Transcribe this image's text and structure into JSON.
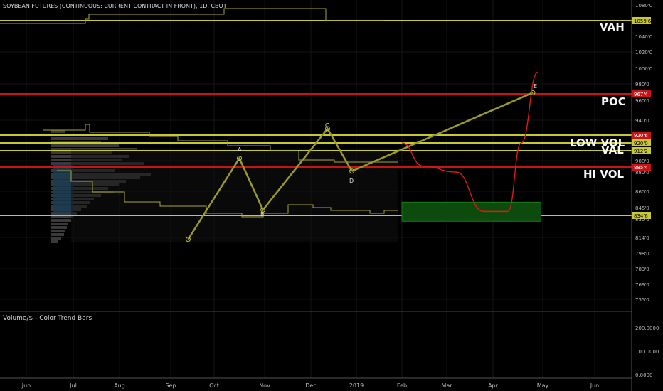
{
  "chart_title": "SOYBEAN FUTURES (CONTINUOUS: CURRENT CONTRACT IN FRONT), 1D, CBOT",
  "volume_title": "Volume/$ - Color Trend Bars",
  "labels": {
    "vah": "VAH",
    "poc": "POC",
    "low_vol": "LOW VOL",
    "val": "VAL",
    "hi_vol": "HI VOL"
  },
  "points": {
    "a": "A",
    "b": "B",
    "c": "C",
    "d": "D",
    "e": "E"
  },
  "colors": {
    "background": "#000000",
    "up": "#2ea02e",
    "down": "#c81e1e",
    "yellow_line": "#c8c832",
    "red_line": "#c81414",
    "pattern": "#9a9a2a",
    "forecast": "#e01818",
    "zone": "#0d5a0d"
  },
  "chart_data": {
    "type": "candlestick",
    "title": "SOYBEAN FUTURES (CONTINUOUS: CURRENT CONTRACT IN FRONT), 1D, CBOT",
    "x_ticks": [
      "Jun",
      "Jul",
      "Aug",
      "Sep",
      "Oct",
      "Nov",
      "Dec",
      "2019",
      "Feb",
      "Mar",
      "Apr",
      "May",
      "Jun"
    ],
    "y_ticks": [
      "1080'0",
      "1059'6",
      "1040'0",
      "1020'0",
      "1000'0",
      "980'0",
      "967'4",
      "960'0",
      "940'0",
      "920'6",
      "920'0",
      "912'2",
      "900'0",
      "885'4",
      "880'0",
      "860'0",
      "845'0",
      "834'6",
      "830'0",
      "814'0",
      "798'0",
      "783'0",
      "769'0",
      "755'0"
    ],
    "levels": [
      {
        "name": "VAH",
        "value": 1059.75,
        "price_label": "1059'6"
      },
      {
        "name": "POC",
        "value": 967.5,
        "price_label": "967'4"
      },
      {
        "name": "920'6",
        "value": 920.75,
        "price_label": "920'6"
      },
      {
        "name": "920'0",
        "value": 920.0,
        "price_label": "920'0"
      },
      {
        "name": "VAL",
        "value": 912.25,
        "price_label": "912'2"
      },
      {
        "name": "HI VOL",
        "value": 885.5,
        "price_label": "885'4"
      },
      {
        "name": "834'6",
        "value": 834.75,
        "price_label": "834'6"
      }
    ],
    "pattern": [
      {
        "label": "",
        "date": "2018-09-13",
        "price": 812
      },
      {
        "label": "A",
        "date": "2018-10-16",
        "price": 903
      },
      {
        "label": "B",
        "date": "2018-10-30",
        "price": 842
      },
      {
        "label": "C",
        "date": "2018-12-12",
        "price": 929
      },
      {
        "label": "D",
        "date": "2018-12-28",
        "price": 881
      },
      {
        "label": "E",
        "date": "2019-04-25",
        "price": 969
      }
    ],
    "forecast_path": [
      {
        "date": "2019-01-31",
        "price": 920
      },
      {
        "date": "2019-02-15",
        "price": 888
      },
      {
        "date": "2019-03-07",
        "price": 880
      },
      {
        "date": "2019-03-25",
        "price": 840
      },
      {
        "date": "2019-04-10",
        "price": 840
      },
      {
        "date": "2019-04-18",
        "price": 920
      },
      {
        "date": "2019-04-28",
        "price": 995
      }
    ],
    "zone": {
      "from": "2019-02-01",
      "to": "2019-04-30",
      "low": 828,
      "high": 850
    },
    "volume_ticks": [
      "200.0000",
      "100.0000",
      "0.0000"
    ]
  }
}
